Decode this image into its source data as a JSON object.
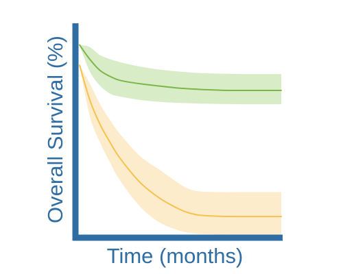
{
  "chart_data": {
    "type": "line",
    "title": "",
    "xlabel": "Time (months)",
    "ylabel": "Overall Survival (%)",
    "xlim": [
      0,
      100
    ],
    "ylim": [
      0,
      100
    ],
    "grid": false,
    "legend": "none",
    "axis_color": "#2f6da3",
    "series": [
      {
        "color": "#7ab648",
        "band_color": "#d9ecc8",
        "x": [
          0,
          5,
          10,
          15,
          20,
          30,
          40,
          50,
          60,
          70,
          80,
          90,
          100
        ],
        "y": [
          93,
          86,
          80.5,
          77.5,
          75.5,
          73.8,
          72.6,
          71.6,
          71,
          70.6,
          70.5,
          70.5,
          70.5
        ],
        "lower": [
          93,
          80,
          73,
          69,
          67.5,
          65.8,
          64.8,
          64.3,
          64,
          63.8,
          63.7,
          63.7,
          63.7
        ],
        "upper": [
          93,
          92,
          88,
          86,
          84.5,
          82.3,
          80.8,
          79.8,
          79.1,
          78.8,
          78.6,
          78.6,
          78.6
        ]
      },
      {
        "color": "#f4c24d",
        "band_color": "#fdeccc",
        "x": [
          0,
          5,
          10,
          15,
          20,
          30,
          40,
          50,
          55,
          60,
          70,
          80,
          90,
          100
        ],
        "y": [
          83,
          66,
          54,
          45,
          37,
          25,
          17,
          11.5,
          9.7,
          8.7,
          8.2,
          8.1,
          8.1,
          8.1
        ],
        "lower": [
          83,
          58,
          45,
          35,
          26,
          13,
          5,
          1,
          0,
          -0.5,
          -0.8,
          -0.8,
          -0.8,
          -0.8
        ],
        "upper": [
          83,
          74,
          64,
          56,
          49,
          38,
          31,
          24,
          21.5,
          20.5,
          20.2,
          20.2,
          20.2,
          20.2
        ]
      }
    ]
  }
}
